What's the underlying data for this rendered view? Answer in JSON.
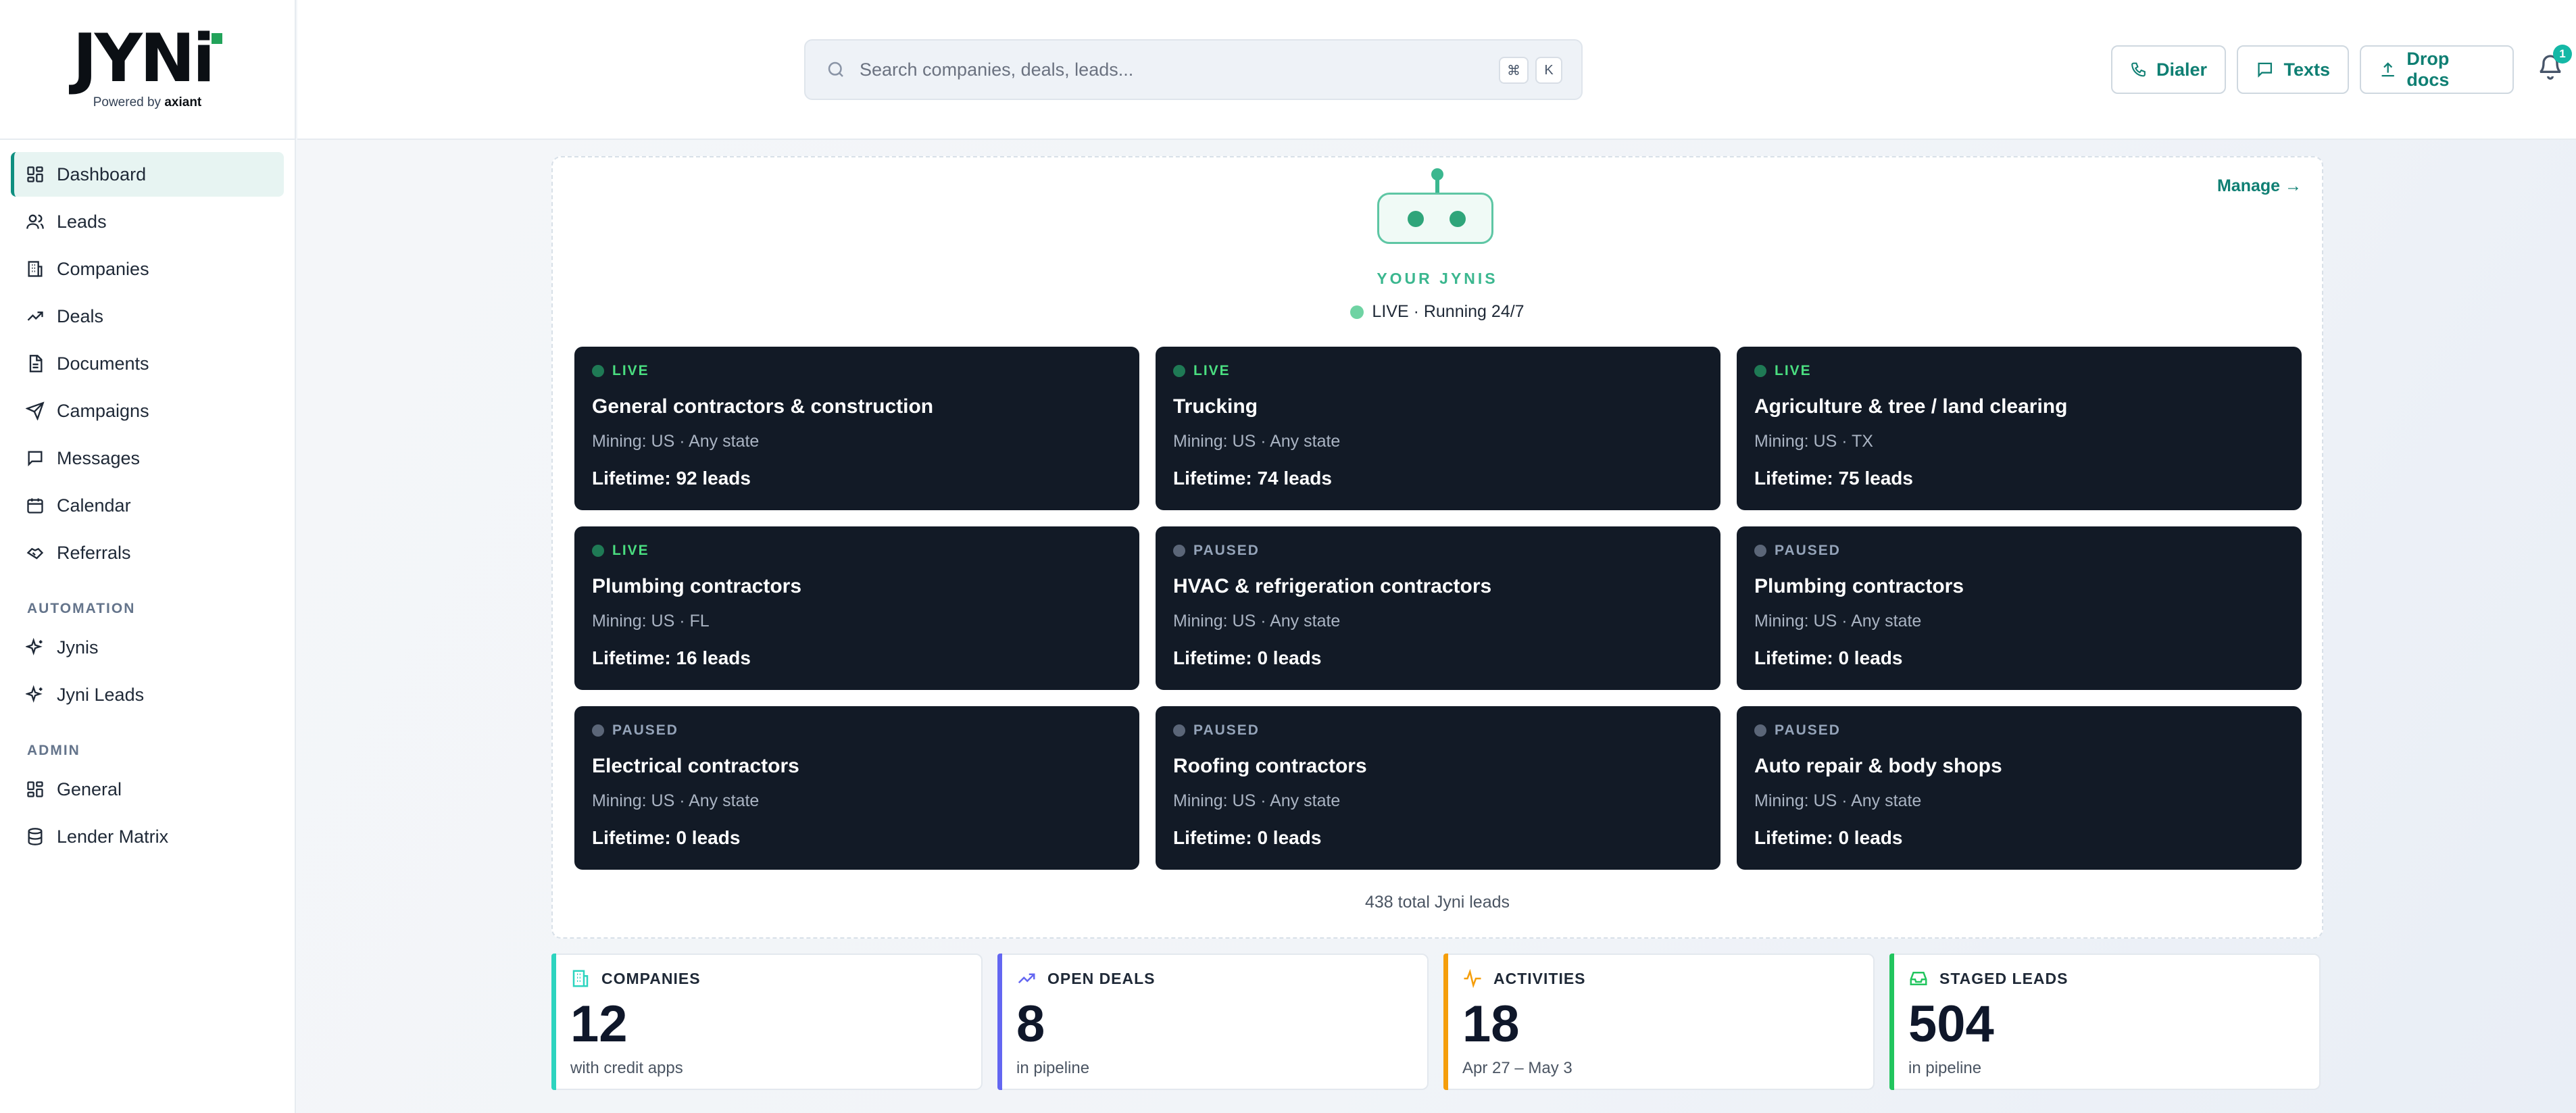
{
  "brand": {
    "logo_text": "JYNi",
    "powered_prefix": "Powered by",
    "powered_brand": "axiant"
  },
  "sidebar": {
    "items": [
      {
        "label": "Dashboard",
        "icon": "dashboard-icon",
        "active": true
      },
      {
        "label": "Leads",
        "icon": "users-icon"
      },
      {
        "label": "Companies",
        "icon": "building-icon"
      },
      {
        "label": "Deals",
        "icon": "trend-icon"
      },
      {
        "label": "Documents",
        "icon": "document-icon"
      },
      {
        "label": "Campaigns",
        "icon": "send-icon"
      },
      {
        "label": "Messages",
        "icon": "message-icon"
      },
      {
        "label": "Calendar",
        "icon": "calendar-icon"
      },
      {
        "label": "Referrals",
        "icon": "handshake-icon"
      }
    ],
    "automation_title": "AUTOMATION",
    "automation_items": [
      {
        "label": "Jynis",
        "icon": "sparkle-icon"
      },
      {
        "label": "Jyni Leads",
        "icon": "sparkle-icon"
      }
    ],
    "admin_title": "ADMIN",
    "admin_items": [
      {
        "label": "General",
        "icon": "grid-icon"
      },
      {
        "label": "Lender Matrix",
        "icon": "database-icon"
      }
    ]
  },
  "topbar": {
    "search_placeholder": "Search companies, deals, leads...",
    "shortcut_mod": "⌘",
    "shortcut_key": "K",
    "dialer_label": "Dialer",
    "texts_label": "Texts",
    "drop_docs_label": "Drop docs",
    "notification_count": "1"
  },
  "jynis": {
    "manage_label": "Manage →",
    "title": "YOUR JYNIS",
    "status": "LIVE · Running 24/7",
    "total": "438 total Jyni leads",
    "cards": [
      {
        "status": "LIVE",
        "live": true,
        "name": "General contractors & construction",
        "mining": "Mining: US · Any state",
        "lifetime": "Lifetime: 92 leads"
      },
      {
        "status": "LIVE",
        "live": true,
        "name": "Trucking",
        "mining": "Mining: US · Any state",
        "lifetime": "Lifetime: 74 leads"
      },
      {
        "status": "LIVE",
        "live": true,
        "name": "Agriculture & tree / land clearing",
        "mining": "Mining: US · TX",
        "lifetime": "Lifetime: 75 leads"
      },
      {
        "status": "LIVE",
        "live": true,
        "name": "Plumbing contractors",
        "mining": "Mining: US · FL",
        "lifetime": "Lifetime: 16 leads"
      },
      {
        "status": "PAUSED",
        "live": false,
        "name": "HVAC & refrigeration contractors",
        "mining": "Mining: US · Any state",
        "lifetime": "Lifetime: 0 leads"
      },
      {
        "status": "PAUSED",
        "live": false,
        "name": "Plumbing contractors",
        "mining": "Mining: US · Any state",
        "lifetime": "Lifetime: 0 leads"
      },
      {
        "status": "PAUSED",
        "live": false,
        "name": "Electrical contractors",
        "mining": "Mining: US · Any state",
        "lifetime": "Lifetime: 0 leads"
      },
      {
        "status": "PAUSED",
        "live": false,
        "name": "Roofing contractors",
        "mining": "Mining: US · Any state",
        "lifetime": "Lifetime: 0 leads"
      },
      {
        "status": "PAUSED",
        "live": false,
        "name": "Auto repair & body shops",
        "mining": "Mining: US · Any state",
        "lifetime": "Lifetime: 0 leads"
      }
    ]
  },
  "stats": [
    {
      "label": "COMPANIES",
      "value": "12",
      "sub": "with credit apps",
      "color": "#2dd4bf",
      "icon": "building-icon"
    },
    {
      "label": "OPEN DEALS",
      "value": "8",
      "sub": "in pipeline",
      "color": "#6366f1",
      "icon": "trend-icon"
    },
    {
      "label": "ACTIVITIES",
      "value": "18",
      "sub": "Apr 27 – May 3",
      "color": "#f59e0b",
      "icon": "activity-icon"
    },
    {
      "label": "STAGED LEADS",
      "value": "504",
      "sub": "in pipeline",
      "color": "#22c55e",
      "icon": "inbox-icon"
    }
  ]
}
